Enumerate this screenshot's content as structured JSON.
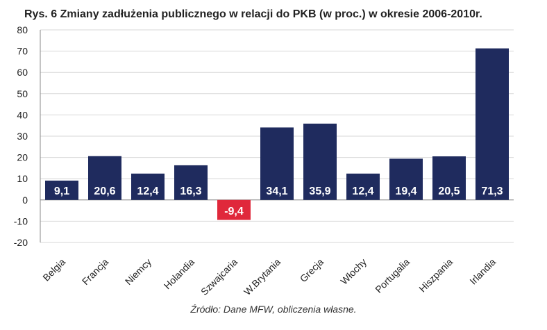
{
  "title": "Rys. 6 Zmiany zadłużenia publicznego w relacji do PKB (w proc.) w okresie 2006-2010r.",
  "source": "Źródło: Dane MFW, obliczenia własne.",
  "colors": {
    "positive": "#1f2b5e",
    "negative": "#e0283b",
    "label": "#ffffff",
    "grid": "#d7d7d7",
    "axis": "#8a8a8a"
  },
  "chart_data": {
    "type": "bar",
    "categories": [
      "Belgia",
      "Francja",
      "Niemcy",
      "Holandia",
      "Szwajcaria",
      "W.Brytania",
      "Grecja",
      "Włochy",
      "Portugalia",
      "Hiszpania",
      "Irlandia"
    ],
    "values": [
      9.1,
      20.6,
      12.4,
      16.3,
      -9.4,
      34.1,
      35.9,
      12.4,
      19.4,
      20.5,
      71.3
    ],
    "data_labels": [
      "9,1",
      "20,6",
      "12,4",
      "16,3",
      "-9,4",
      "34,1",
      "35,9",
      "12,4",
      "19,4",
      "20,5",
      "71,3"
    ],
    "yticks": [
      "-20",
      "-10",
      "0",
      "10",
      "20",
      "30",
      "40",
      "50",
      "60",
      "70",
      "80"
    ],
    "ylim": [
      -20,
      80
    ],
    "grid": true,
    "legend": "none"
  }
}
